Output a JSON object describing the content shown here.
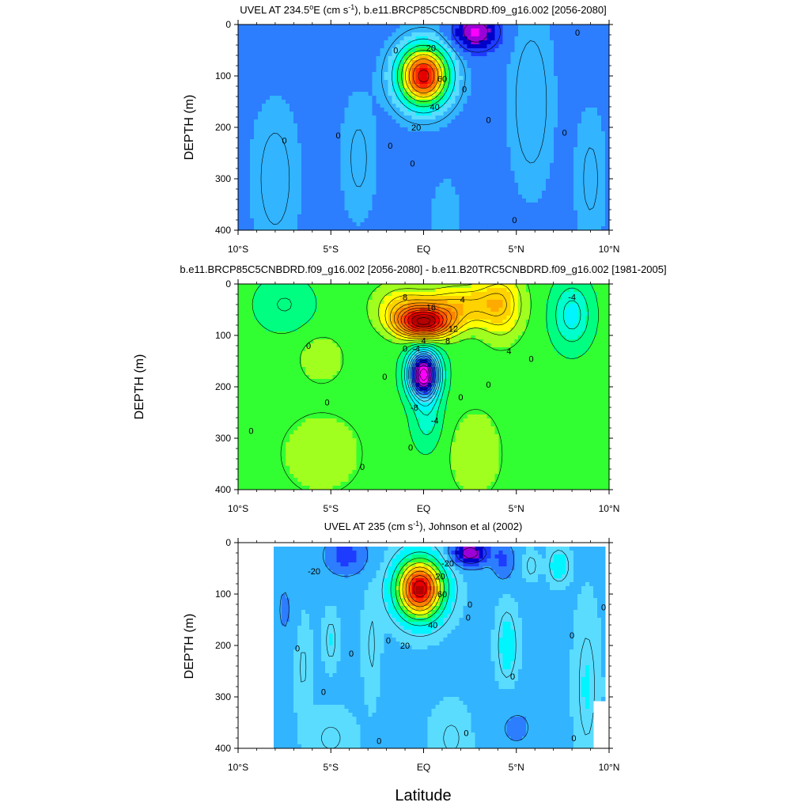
{
  "figure": {
    "xlabel": "Latitude"
  },
  "palette": [
    "#ff00ff",
    "#9b00d6",
    "#0000c8",
    "#1e3cff",
    "#2d7dff",
    "#32b4ff",
    "#5adcff",
    "#00f5ff",
    "#00ffcc",
    "#00ff80",
    "#32ff32",
    "#a0ff1e",
    "#ffff00",
    "#ffd200",
    "#ffaa00",
    "#ff8200",
    "#ff5a00",
    "#ff2800",
    "#e60000",
    "#b40000"
  ],
  "chart_data": [
    {
      "type": "contour",
      "title_main": "UVEL AT 234.5",
      "title_unit_sup": "o",
      "title_rest": "E (cm s",
      "title_exp": "-1",
      "title_tail": "), b.e11.BRCP85C5CNBDRD.f09_g16.002 [2056-2080]",
      "ylabel": "DEPTH (m)",
      "xlim": [
        -10,
        10
      ],
      "ylim": [
        400,
        0
      ],
      "xticks": [
        {
          "v": -10,
          "label": "10°S"
        },
        {
          "v": -5,
          "label": "5°S"
        },
        {
          "v": 0,
          "label": "EQ"
        },
        {
          "v": 5,
          "label": "5°N"
        },
        {
          "v": 10,
          "label": "10°N"
        }
      ],
      "yticks": [
        0,
        100,
        200,
        300,
        400
      ],
      "contour_labels": [
        {
          "lat": 0.4,
          "depth": 45,
          "text": "20"
        },
        {
          "lat": 1.0,
          "depth": 105,
          "text": "60"
        },
        {
          "lat": 0.6,
          "depth": 160,
          "text": "40"
        },
        {
          "lat": -0.4,
          "depth": 200,
          "text": "20"
        },
        {
          "lat": -1.5,
          "depth": 50,
          "text": "0"
        },
        {
          "lat": 2.2,
          "depth": 125,
          "text": "0"
        },
        {
          "lat": -7.5,
          "depth": 225,
          "text": "0"
        },
        {
          "lat": -4.6,
          "depth": 215,
          "text": "0"
        },
        {
          "lat": -1.8,
          "depth": 235,
          "text": "0"
        },
        {
          "lat": -0.6,
          "depth": 270,
          "text": "0"
        },
        {
          "lat": 3.5,
          "depth": 185,
          "text": "0"
        },
        {
          "lat": 7.6,
          "depth": 210,
          "text": "0"
        },
        {
          "lat": 8.3,
          "depth": 15,
          "text": "0"
        },
        {
          "lat": 4.9,
          "depth": 380,
          "text": "0"
        }
      ],
      "features": [
        {
          "lat": 0.0,
          "depth": 100,
          "slat": 1.3,
          "sdep": 55,
          "amp": 78
        },
        {
          "lat": 2.8,
          "depth": 15,
          "slat": 1.2,
          "sdep": 35,
          "amp": -22
        },
        {
          "lat": 5.8,
          "depth": 150,
          "slat": 1.1,
          "sdep": 160,
          "amp": 7
        },
        {
          "lat": -8.0,
          "depth": 300,
          "slat": 1.2,
          "sdep": 140,
          "amp": 6
        },
        {
          "lat": -3.5,
          "depth": 260,
          "slat": 0.9,
          "sdep": 120,
          "amp": 5
        },
        {
          "lat": 1.2,
          "depth": 380,
          "slat": 0.8,
          "sdep": 80,
          "amp": 4
        },
        {
          "lat": 9.0,
          "depth": 300,
          "slat": 0.8,
          "sdep": 130,
          "amp": 5
        }
      ],
      "base": -4,
      "levels": {
        "min": -30,
        "max": 80,
        "step": 10
      },
      "color_range": [
        -30,
        80
      ],
      "mask": null
    },
    {
      "type": "contour",
      "title_main": "b.e11.BRCP85C5CNBDRD.f09_g16.002 [2056-2080] - b.e11.B20TRC5CNBDRD.f09_g16.002 [1981-2005]",
      "ylabel": "DEPTH (m)",
      "xlim": [
        -10,
        10
      ],
      "ylim": [
        400,
        0
      ],
      "xticks": [
        {
          "v": -10,
          "label": "10°S"
        },
        {
          "v": -5,
          "label": "5°S"
        },
        {
          "v": 0,
          "label": "EQ"
        },
        {
          "v": 5,
          "label": "5°N"
        },
        {
          "v": 10,
          "label": "10°N"
        }
      ],
      "yticks": [
        0,
        100,
        200,
        300,
        400
      ],
      "contour_labels": [
        {
          "lat": -1.0,
          "depth": 25,
          "text": "8"
        },
        {
          "lat": 0.4,
          "depth": 45,
          "text": "16"
        },
        {
          "lat": 2.1,
          "depth": 30,
          "text": "4"
        },
        {
          "lat": 1.6,
          "depth": 87,
          "text": "12"
        },
        {
          "lat": 1.3,
          "depth": 110,
          "text": "8"
        },
        {
          "lat": 0.0,
          "depth": 110,
          "text": "4"
        },
        {
          "lat": -1.0,
          "depth": 125,
          "text": "0"
        },
        {
          "lat": -0.4,
          "depth": 125,
          "text": "-4"
        },
        {
          "lat": -0.5,
          "depth": 240,
          "text": "-8"
        },
        {
          "lat": 0.6,
          "depth": 265,
          "text": "-4"
        },
        {
          "lat": 4.6,
          "depth": 130,
          "text": "4"
        },
        {
          "lat": 8.0,
          "depth": 25,
          "text": "-4"
        },
        {
          "lat": -6.2,
          "depth": 120,
          "text": "0"
        },
        {
          "lat": -5.2,
          "depth": 230,
          "text": "0"
        },
        {
          "lat": -9.3,
          "depth": 285,
          "text": "0"
        },
        {
          "lat": -2.1,
          "depth": 180,
          "text": "0"
        },
        {
          "lat": 2.0,
          "depth": 220,
          "text": "0"
        },
        {
          "lat": 3.5,
          "depth": 195,
          "text": "0"
        },
        {
          "lat": 5.8,
          "depth": 145,
          "text": "0"
        },
        {
          "lat": -0.7,
          "depth": 318,
          "text": "0"
        },
        {
          "lat": -3.3,
          "depth": 355,
          "text": "0"
        }
      ],
      "features": [
        {
          "lat": 0.0,
          "depth": 75,
          "slat": 1.5,
          "sdep": 30,
          "amp": 20
        },
        {
          "lat": 2.0,
          "depth": 40,
          "slat": 2.0,
          "sdep": 40,
          "amp": 7
        },
        {
          "lat": 4.2,
          "depth": 40,
          "slat": 1.2,
          "sdep": 70,
          "amp": 6
        },
        {
          "lat": -1.2,
          "depth": 40,
          "slat": 1.5,
          "sdep": 40,
          "amp": 5
        },
        {
          "lat": 0.0,
          "depth": 175,
          "slat": 0.8,
          "sdep": 45,
          "amp": -24
        },
        {
          "lat": 0.2,
          "depth": 260,
          "slat": 0.8,
          "sdep": 60,
          "amp": -4
        },
        {
          "lat": 8.0,
          "depth": 60,
          "slat": 1.0,
          "sdep": 60,
          "amp": -6
        },
        {
          "lat": -5.5,
          "depth": 145,
          "slat": 1.2,
          "sdep": 45,
          "amp": 3
        },
        {
          "lat": -7.5,
          "depth": 40,
          "slat": 1.5,
          "sdep": 50,
          "amp": -3
        },
        {
          "lat": 2.8,
          "depth": 330,
          "slat": 1.5,
          "sdep": 90,
          "amp": 3
        },
        {
          "lat": -5.5,
          "depth": 330,
          "slat": 2.5,
          "sdep": 90,
          "amp": 2.6
        }
      ],
      "base": -1.2,
      "levels": {
        "min": -24,
        "max": 20,
        "step": 2
      },
      "color_range": [
        -24,
        20
      ],
      "mask": null
    },
    {
      "type": "contour",
      "title_main": "UVEL AT 235 (cm s",
      "title_exp": "-1",
      "title_tail": "), Johnson et al (2002)",
      "ylabel": "DEPTH (m)",
      "xlim": [
        -10,
        10
      ],
      "ylim": [
        400,
        0
      ],
      "xticks": [
        {
          "v": -10,
          "label": "10°S"
        },
        {
          "v": -5,
          "label": "5°S"
        },
        {
          "v": 0,
          "label": "EQ"
        },
        {
          "v": 5,
          "label": "5°N"
        },
        {
          "v": 10,
          "label": "10°N"
        }
      ],
      "yticks": [
        0,
        100,
        200,
        300,
        400
      ],
      "contour_labels": [
        {
          "lat": 0.9,
          "depth": 65,
          "text": "20"
        },
        {
          "lat": 1.0,
          "depth": 100,
          "text": "60"
        },
        {
          "lat": 0.5,
          "depth": 160,
          "text": "40"
        },
        {
          "lat": -1.0,
          "depth": 200,
          "text": "20"
        },
        {
          "lat": 1.3,
          "depth": 40,
          "text": "-20"
        },
        {
          "lat": -5.9,
          "depth": 55,
          "text": "-20"
        },
        {
          "lat": 2.4,
          "depth": 145,
          "text": "0"
        },
        {
          "lat": 2.5,
          "depth": 120,
          "text": "0"
        },
        {
          "lat": -6.8,
          "depth": 205,
          "text": "0"
        },
        {
          "lat": -5.4,
          "depth": 290,
          "text": "0"
        },
        {
          "lat": -3.9,
          "depth": 215,
          "text": "0"
        },
        {
          "lat": -1.9,
          "depth": 190,
          "text": "0"
        },
        {
          "lat": 4.8,
          "depth": 260,
          "text": "0"
        },
        {
          "lat": 8.0,
          "depth": 180,
          "text": "0"
        },
        {
          "lat": 9.7,
          "depth": 125,
          "text": "0"
        },
        {
          "lat": 2.3,
          "depth": 370,
          "text": "0"
        },
        {
          "lat": 8.1,
          "depth": 380,
          "text": "0"
        },
        {
          "lat": -2.4,
          "depth": 385,
          "text": "0"
        }
      ],
      "features": [
        {
          "lat": -0.2,
          "depth": 90,
          "slat": 1.2,
          "sdep": 55,
          "amp": 82
        },
        {
          "lat": 2.5,
          "depth": 20,
          "slat": 1.0,
          "sdep": 25,
          "amp": -30
        },
        {
          "lat": 4.3,
          "depth": 35,
          "slat": 0.6,
          "sdep": 40,
          "amp": -12
        },
        {
          "lat": -4.2,
          "depth": 25,
          "slat": 1.2,
          "sdep": 40,
          "amp": -14
        },
        {
          "lat": 7.3,
          "depth": 45,
          "slat": 0.5,
          "sdep": 30,
          "amp": 14
        },
        {
          "lat": 5.8,
          "depth": 45,
          "slat": 0.35,
          "sdep": 25,
          "amp": 8
        },
        {
          "lat": 4.5,
          "depth": 200,
          "slat": 0.5,
          "sdep": 70,
          "amp": 12
        },
        {
          "lat": -5.0,
          "depth": 190,
          "slat": 0.35,
          "sdep": 50,
          "amp": 8
        },
        {
          "lat": -6.5,
          "depth": 240,
          "slat": 0.4,
          "sdep": 90,
          "amp": 6
        },
        {
          "lat": 8.8,
          "depth": 280,
          "slat": 0.6,
          "sdep": 140,
          "amp": 8
        },
        {
          "lat": -2.8,
          "depth": 200,
          "slat": 0.4,
          "sdep": 100,
          "amp": 6
        },
        {
          "lat": 5.0,
          "depth": 360,
          "slat": 1.5,
          "sdep": 60,
          "amp": -6
        },
        {
          "lat": 1.5,
          "depth": 380,
          "slat": 1.0,
          "sdep": 60,
          "amp": 6
        },
        {
          "lat": -5.0,
          "depth": 380,
          "slat": 1.2,
          "sdep": 50,
          "amp": 6
        },
        {
          "lat": -7.5,
          "depth": 130,
          "slat": 0.6,
          "sdep": 80,
          "amp": -6
        }
      ],
      "base": -5,
      "levels": {
        "min": -40,
        "max": 80,
        "step": 10
      },
      "color_range": [
        -40,
        80
      ],
      "mask": {
        "lat_min": -8.0,
        "lat_max": 9.8,
        "depth_min": 10,
        "lat_deep_max": 9.2,
        "deep_depth": 310
      }
    }
  ]
}
